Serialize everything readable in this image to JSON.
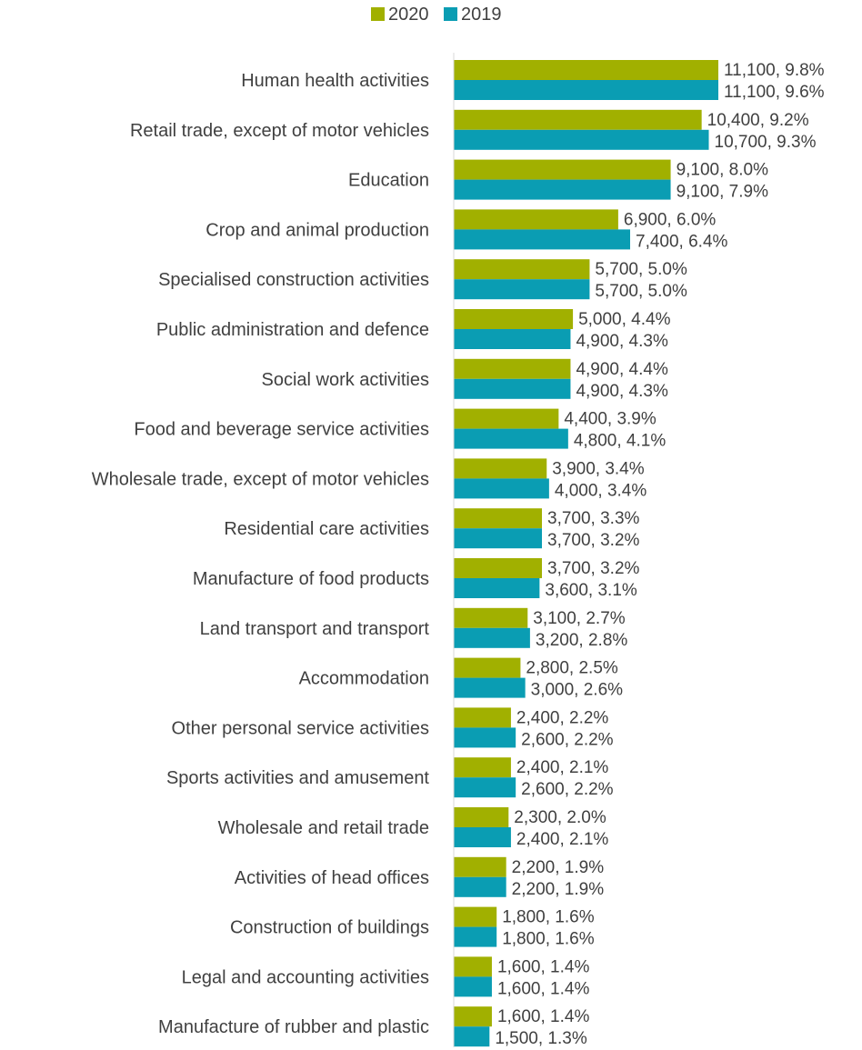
{
  "chart_data": {
    "type": "bar",
    "orientation": "horizontal",
    "grid": false,
    "legend_position": "top-center",
    "categories": [
      "Human health activities",
      "Retail trade, except of motor vehicles",
      "Education",
      "Crop and animal production",
      "Specialised construction activities",
      "Public administration and defence",
      "Social work activities",
      "Food and beverage service activities",
      "Wholesale trade, except of motor vehicles",
      "Residential care activities",
      "Manufacture of food products",
      "Land transport and transport",
      "Accommodation",
      "Other personal service activities",
      "Sports activities and amusement",
      "Wholesale and retail trade",
      "Activities of head offices",
      "Construction of buildings",
      "Legal and accounting activities",
      "Manufacture of rubber and plastic"
    ],
    "series": [
      {
        "name": "2020",
        "color": "#a1b000",
        "values": [
          11100,
          10400,
          9100,
          6900,
          5700,
          5000,
          4900,
          4400,
          3900,
          3700,
          3700,
          3100,
          2800,
          2400,
          2400,
          2300,
          2200,
          1800,
          1600,
          1600
        ],
        "labels": [
          "11,100, 9.8%",
          "10,400, 9.2%",
          "9,100, 8.0%",
          "6,900, 6.0%",
          "5,700, 5.0%",
          "5,000, 4.4%",
          "4,900, 4.4%",
          "4,400, 3.9%",
          "3,900, 3.4%",
          "3,700, 3.3%",
          "3,700, 3.2%",
          "3,100, 2.7%",
          "2,800, 2.5%",
          "2,400, 2.2%",
          "2,400, 2.1%",
          "2,300, 2.0%",
          "2,200, 1.9%",
          "1,800, 1.6%",
          "1,600, 1.4%",
          "1,600, 1.4%"
        ]
      },
      {
        "name": "2019",
        "color": "#0a9db3",
        "values": [
          11100,
          10700,
          9100,
          7400,
          5700,
          4900,
          4900,
          4800,
          4000,
          3700,
          3600,
          3200,
          3000,
          2600,
          2600,
          2400,
          2200,
          1800,
          1600,
          1500
        ],
        "labels": [
          "11,100, 9.6%",
          "10,700, 9.3%",
          "9,100, 7.9%",
          "7,400, 6.4%",
          "5,700, 5.0%",
          "4,900, 4.3%",
          "4,900, 4.3%",
          "4,800, 4.1%",
          "4,000, 3.4%",
          "3,700, 3.2%",
          "3,600, 3.1%",
          "3,200, 2.8%",
          "3,000, 2.6%",
          "2,600, 2.2%",
          "2,600, 2.2%",
          "2,400, 2.1%",
          "2,200, 1.9%",
          "1,800, 1.6%",
          "1,600, 1.4%",
          "1,500, 1.3%"
        ]
      }
    ],
    "xlim": [
      0,
      11100
    ],
    "axis_color": "#d9d9d9"
  }
}
